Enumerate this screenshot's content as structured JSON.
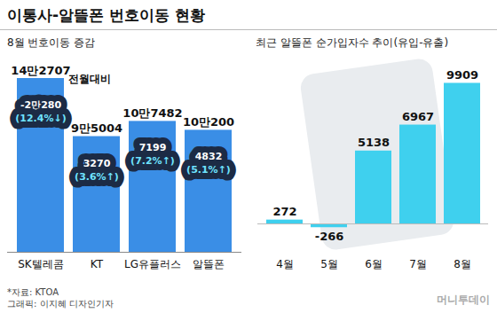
{
  "title": "이통사-알뜰폰 번호이동 현황",
  "source": "*자료: KTOA",
  "credit": "그래픽: 이지혜 디자인기자",
  "publisher": "머니투데이",
  "chart_data": [
    {
      "type": "bar",
      "title": "8월 번호이동 증감",
      "categories": [
        "SK텔레콤",
        "KT",
        "LG유플러스",
        "알뜰폰"
      ],
      "values": [
        142707,
        95004,
        107482,
        100200
      ],
      "value_labels": [
        "14만2707",
        "9만5004",
        "10만7482",
        "10만200"
      ],
      "data_labels": true,
      "color": "#3a8ee6",
      "annotation": "전월대비",
      "changes": [
        -20280,
        3270,
        7199,
        4832
      ],
      "change_labels": [
        "-2만280",
        "3270",
        "7199",
        "4832"
      ],
      "change_pct": [
        -12.4,
        3.6,
        7.2,
        5.1
      ],
      "change_pct_labels": [
        "(12.4%↓)",
        "(3.6%↑)",
        "(7.2%↑)",
        "(5.1%↑)"
      ],
      "ylim": [
        0,
        150000
      ],
      "tick_labels": "x"
    },
    {
      "type": "bar",
      "title": "최근 알뜰폰 순가입자수 추이(유입-유출)",
      "categories": [
        "4월",
        "5월",
        "6월",
        "7월",
        "8월"
      ],
      "values": [
        272,
        -266,
        5138,
        6967,
        9909
      ],
      "data_labels": true,
      "color": "#3fd0ee",
      "ylim": [
        -2000,
        11000
      ],
      "tick_labels": "x"
    }
  ]
}
